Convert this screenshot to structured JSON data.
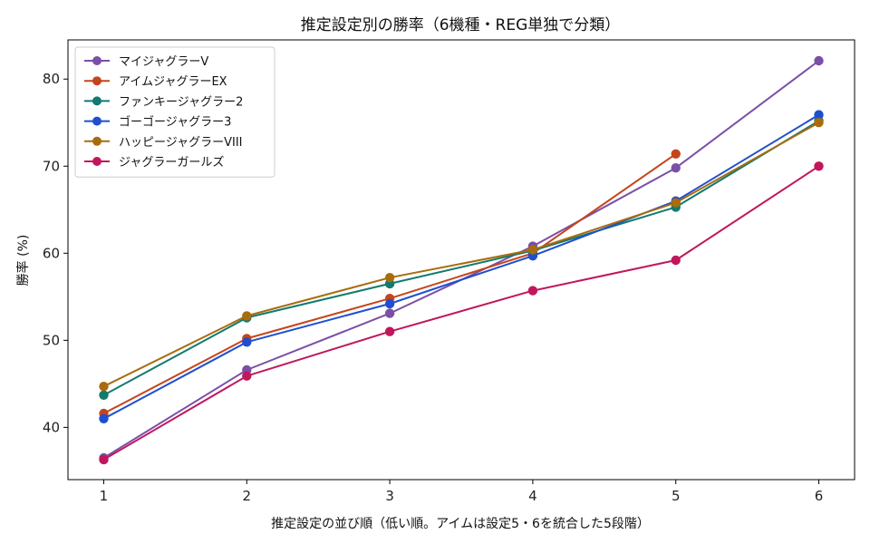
{
  "chart_data": {
    "type": "line",
    "title": "推定設定別の勝率（6機種・REG単独で分類）",
    "xlabel": "推定設定の並び順（低い順。アイムは設定5・6を統合した5段階）",
    "ylabel": "勝率 (%)",
    "x": [
      1,
      2,
      3,
      4,
      5,
      6
    ],
    "xticks": [
      "1",
      "2",
      "3",
      "4",
      "5",
      "6"
    ],
    "yticks": [
      "40",
      "50",
      "60",
      "70",
      "80"
    ],
    "xlim": [
      0.75,
      6.25
    ],
    "ylim": [
      34,
      84.5
    ],
    "grid": false,
    "legend_position": "top-left",
    "series": [
      {
        "name": "マイジャグラーV",
        "color": "#7b4fa6",
        "values": [
          36.5,
          46.6,
          53.1,
          60.8,
          69.8,
          82.1
        ]
      },
      {
        "name": "アイムジャグラーEX",
        "color": "#c4451c",
        "values": [
          41.6,
          50.2,
          54.8,
          60.0,
          71.4,
          null
        ]
      },
      {
        "name": "ファンキージャグラー2",
        "color": "#127a6e",
        "values": [
          43.7,
          52.6,
          56.5,
          60.3,
          65.3,
          75.2
        ]
      },
      {
        "name": "ゴーゴージャグラー3",
        "color": "#1f4fcf",
        "values": [
          41.0,
          49.8,
          54.2,
          59.7,
          66.0,
          75.9
        ]
      },
      {
        "name": "ハッピージャグラーVIII",
        "color": "#a86c0e",
        "values": [
          44.7,
          52.8,
          57.2,
          60.4,
          65.8,
          75.0
        ]
      },
      {
        "name": "ジャグラーガールズ",
        "color": "#c0175c",
        "values": [
          36.3,
          45.9,
          51.0,
          55.7,
          59.2,
          70.0
        ]
      }
    ]
  }
}
